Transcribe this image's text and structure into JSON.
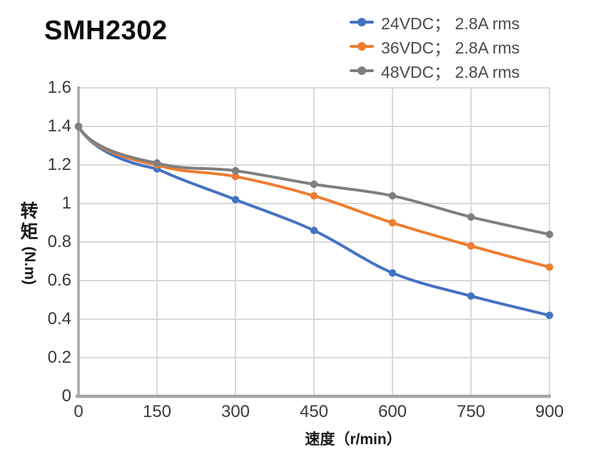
{
  "chart_data": {
    "type": "line",
    "title": "SMH2302",
    "x_label": "速度（r/min）",
    "y_label": "转矩（N.m）",
    "y_label_cjk": "转矩",
    "y_label_unit": "(N.m)",
    "x": [
      0,
      150,
      300,
      450,
      600,
      750,
      900
    ],
    "x_tick_labels": [
      "0",
      "150",
      "300",
      "450",
      "600",
      "750",
      "900"
    ],
    "y_tick_values": [
      0,
      0.2,
      0.4,
      0.6,
      0.8,
      1.0,
      1.2,
      1.4,
      1.6
    ],
    "y_tick_labels": [
      "0",
      "0.2",
      "0.4",
      "0.6",
      "0.8",
      "1",
      "1.2",
      "1.4",
      "1.6"
    ],
    "xlim": [
      0,
      900
    ],
    "ylim": [
      0,
      1.6
    ],
    "grid": true,
    "legend_position": "top-right",
    "series": [
      {
        "name": "24VDC； 2.8A rms",
        "color": "#4472C4",
        "values": [
          1.4,
          1.18,
          1.02,
          0.86,
          0.64,
          0.52,
          0.42
        ]
      },
      {
        "name": "36VDC； 2.8A rms",
        "color": "#ED7D31",
        "values": [
          1.4,
          1.2,
          1.14,
          1.04,
          0.9,
          0.78,
          0.67
        ]
      },
      {
        "name": "48VDC； 2.8A rms",
        "color": "#7F7F7F",
        "values": [
          1.4,
          1.21,
          1.17,
          1.1,
          1.04,
          0.93,
          0.84
        ]
      }
    ],
    "colors": {
      "gridline": "#d9d9d9",
      "axis": "#a6a6a6",
      "tick_text": "#3a3a3a",
      "legend_text": "#4a4a4a",
      "title_text": "#0d0d0d"
    }
  }
}
